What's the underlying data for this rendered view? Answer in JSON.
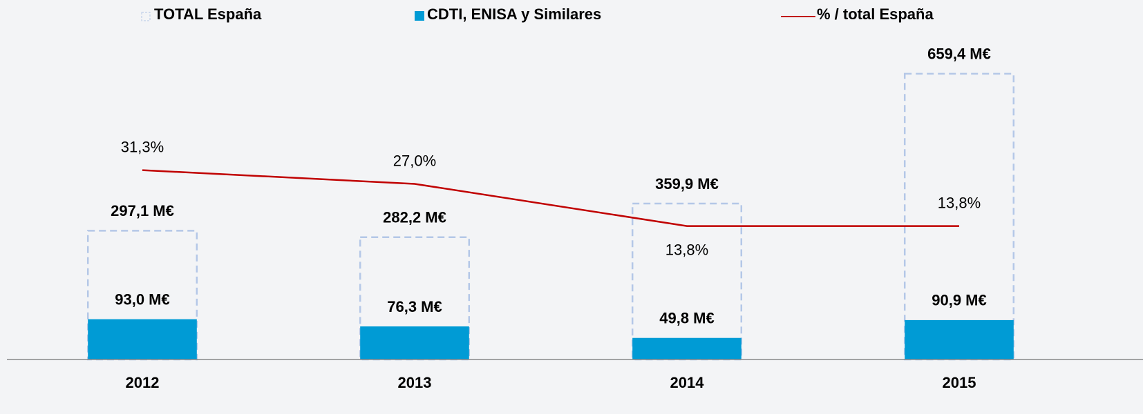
{
  "chart_data": {
    "type": "bar",
    "categories": [
      "2012",
      "2013",
      "2014",
      "2015"
    ],
    "series": [
      {
        "name": "TOTAL España",
        "color": "#b4c7e7",
        "values": [
          297.1,
          282.2,
          359.9,
          659.4
        ],
        "value_labels": [
          "297,1 M€",
          "282,2 M€",
          "359,9 M€",
          "659,4 M€"
        ]
      },
      {
        "name": "CDTI, ENISA y Similares",
        "color": "#009bd5",
        "values": [
          93.0,
          76.3,
          49.8,
          90.9
        ],
        "value_labels": [
          "93,0 M€",
          "76,3 M€",
          "49,8 M€",
          "90,9 M€"
        ]
      },
      {
        "name": "% / total España",
        "color": "#c00000",
        "axis": "y2",
        "values": [
          31.3,
          27.0,
          13.8,
          13.8
        ],
        "value_labels": [
          "31,3%",
          "27,0%",
          "13,8%",
          "13,8%"
        ]
      }
    ],
    "ylim": [
      0,
      700
    ],
    "y2lim": [
      -28,
      67
    ]
  }
}
